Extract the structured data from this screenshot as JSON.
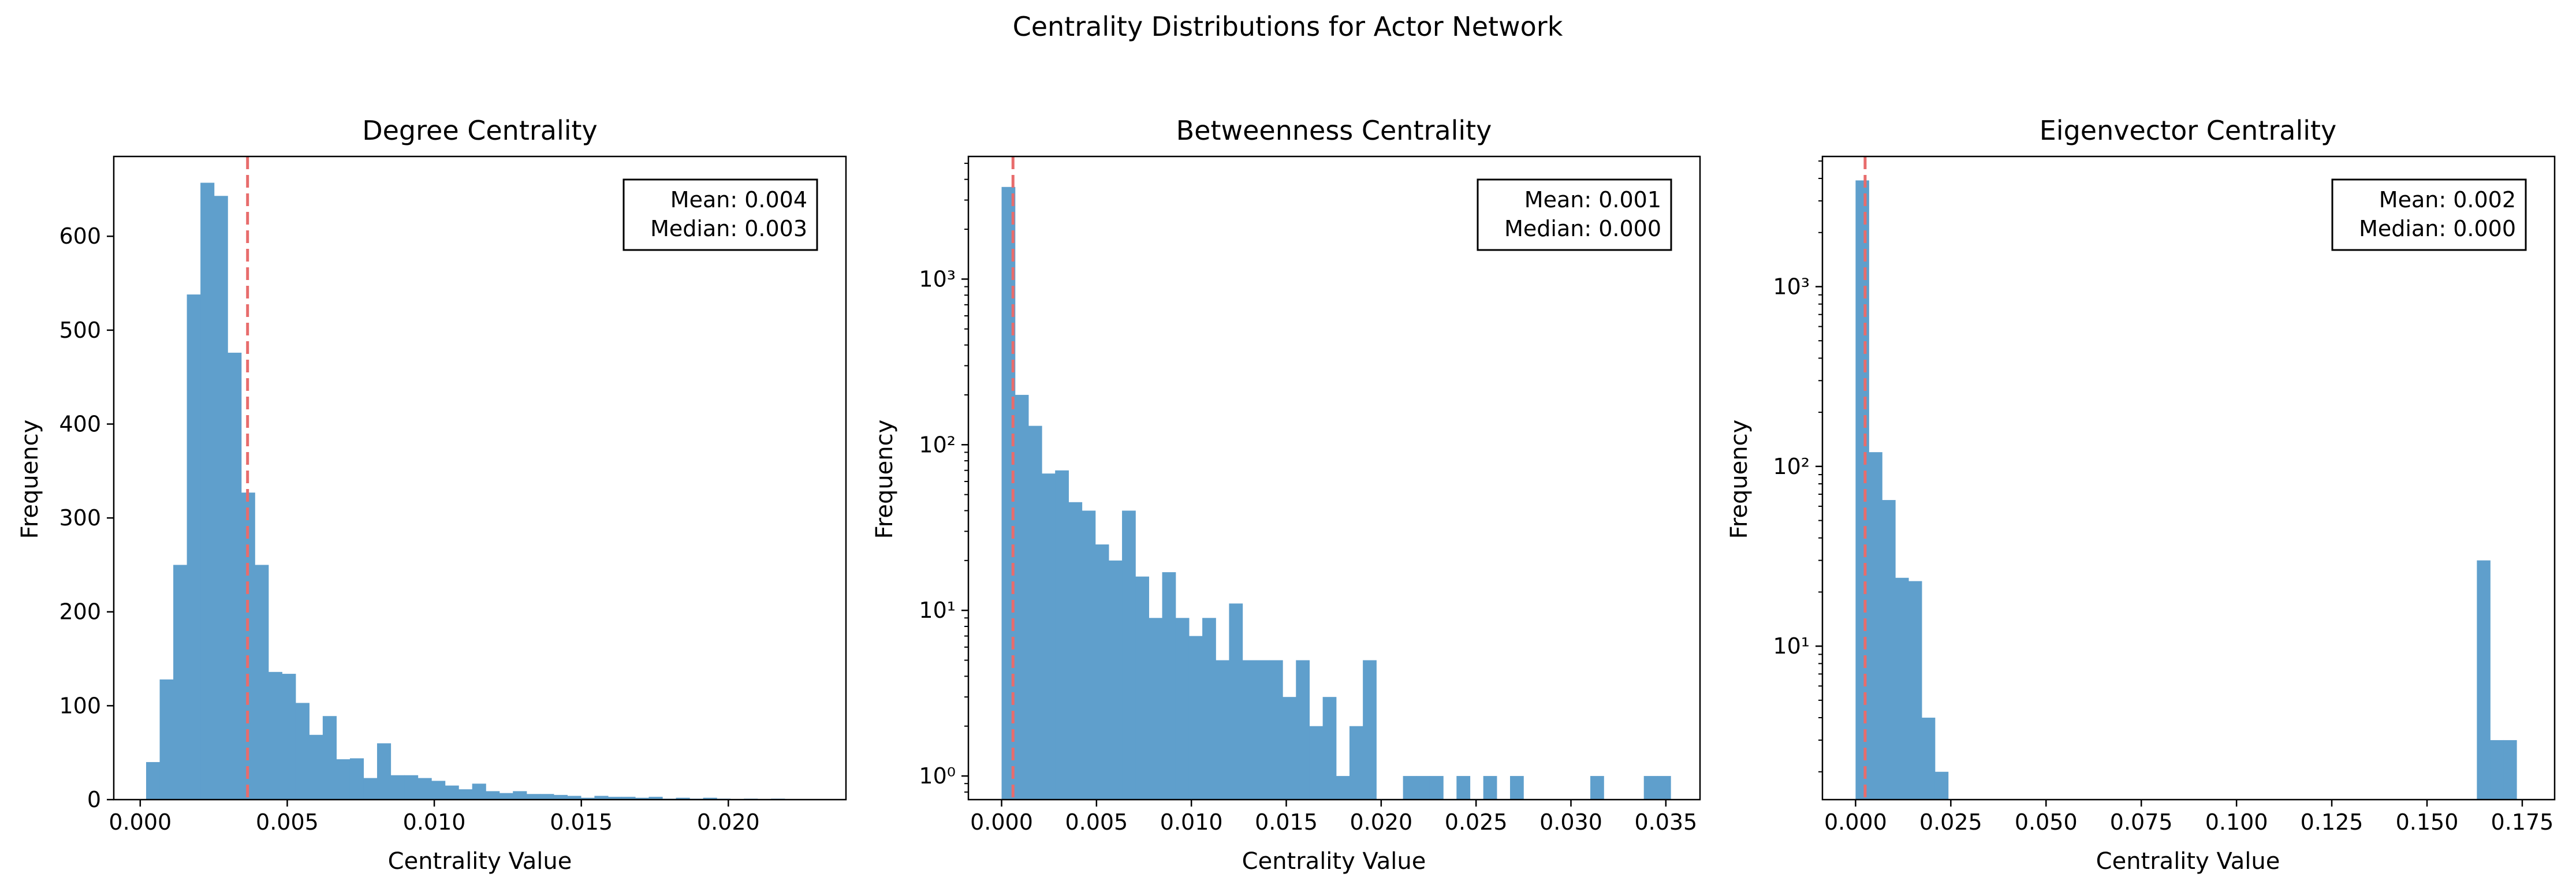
{
  "figure": {
    "title": "Centrality Distributions for Actor Network"
  },
  "colors": {
    "bars": "#5f9fcc",
    "mean_line": "#e86c6c",
    "axes": "#000000"
  },
  "chart_data": [
    {
      "type": "bar",
      "title": "Degree Centrality",
      "xlabel": "Centrality Value",
      "ylabel": "Frequency",
      "yscale": "linear",
      "xlim": [
        -0.0009,
        0.024
      ],
      "ylim": [
        0,
        685
      ],
      "xticks": [
        0.0,
        0.005,
        0.01,
        0.015,
        0.02
      ],
      "xtick_labels": [
        "0.000",
        "0.005",
        "0.010",
        "0.015",
        "0.020"
      ],
      "yticks": [
        0,
        100,
        200,
        300,
        400,
        500,
        600
      ],
      "ytick_labels": [
        "0",
        "100",
        "200",
        "300",
        "400",
        "500",
        "600"
      ],
      "bin_start": 0.0002,
      "bin_width": 0.000462,
      "values": [
        40,
        128,
        250,
        538,
        657,
        643,
        476,
        327,
        250,
        136,
        134,
        103,
        69,
        89,
        43,
        44,
        23,
        60,
        26,
        26,
        23,
        20,
        15,
        11,
        17,
        9,
        7,
        9,
        6,
        6,
        5,
        4,
        2,
        4,
        3,
        3,
        2,
        3,
        1,
        2,
        1,
        2,
        1,
        0,
        1,
        0,
        1,
        0
      ],
      "mean_line_x": 0.00365,
      "stats_box": {
        "mean": "Mean: 0.004",
        "median": "Median: 0.003"
      },
      "legend": "none",
      "grid": false
    },
    {
      "type": "bar",
      "title": "Betweenness Centrality",
      "xlabel": "Centrality Value",
      "ylabel": "Frequency",
      "yscale": "log",
      "xlim": [
        -0.00175,
        0.0368
      ],
      "ylim": [
        0.72,
        5500
      ],
      "xticks": [
        0.0,
        0.005,
        0.01,
        0.015,
        0.02,
        0.025,
        0.03,
        0.035
      ],
      "xtick_labels": [
        "0.000",
        "0.005",
        "0.010",
        "0.015",
        "0.020",
        "0.025",
        "0.030",
        "0.035"
      ],
      "yticks": [
        1,
        10,
        100,
        1000
      ],
      "ytick_labels": [
        "10⁰",
        "10¹",
        "10²",
        "10³"
      ],
      "bin_start": 0.0,
      "bin_width": 0.000705,
      "values": [
        3600,
        200,
        130,
        67,
        70,
        45,
        40,
        25,
        20,
        40,
        16,
        9,
        17,
        9,
        7,
        9,
        5,
        11,
        5,
        5,
        5,
        3,
        5,
        2,
        3,
        1,
        2,
        5,
        0,
        0,
        1,
        1,
        1,
        0,
        1,
        0,
        1,
        0,
        1,
        0,
        0,
        0,
        0,
        0,
        1,
        0,
        0,
        0,
        1,
        1
      ],
      "mean_line_x": 0.0006,
      "stats_box": {
        "mean": "Mean: 0.001",
        "median": "Median: 0.000"
      },
      "legend": "none",
      "grid": false
    },
    {
      "type": "bar",
      "title": "Eigenvector Centrality",
      "xlabel": "Centrality Value",
      "ylabel": "Frequency",
      "yscale": "log",
      "xlim": [
        -0.0087,
        0.1835
      ],
      "ylim": [
        1.4,
        5300
      ],
      "xticks": [
        0.0,
        0.025,
        0.05,
        0.075,
        0.1,
        0.125,
        0.15,
        0.175
      ],
      "xtick_labels": [
        "0.000",
        "0.025",
        "0.050",
        "0.075",
        "0.100",
        "0.125",
        "0.150",
        "0.175"
      ],
      "yticks": [
        10,
        100,
        1000
      ],
      "ytick_labels": [
        "10¹",
        "10²",
        "10³"
      ],
      "bin_start": 0.0,
      "bin_width": 0.00347,
      "values": [
        3900,
        120,
        65,
        24,
        23,
        4,
        2,
        0,
        0,
        0,
        0,
        0,
        0,
        0,
        0,
        0,
        0,
        0,
        0,
        0,
        0,
        0,
        0,
        0,
        0,
        0,
        0,
        0,
        0,
        0,
        0,
        0,
        0,
        0,
        0,
        0,
        0,
        0,
        0,
        0,
        0,
        0,
        0,
        0,
        0,
        0,
        0,
        30,
        3,
        3
      ],
      "mean_line_x": 0.0025,
      "stats_box": {
        "mean": "Mean: 0.002",
        "median": "Median: 0.000"
      },
      "legend": "none",
      "grid": false
    }
  ]
}
